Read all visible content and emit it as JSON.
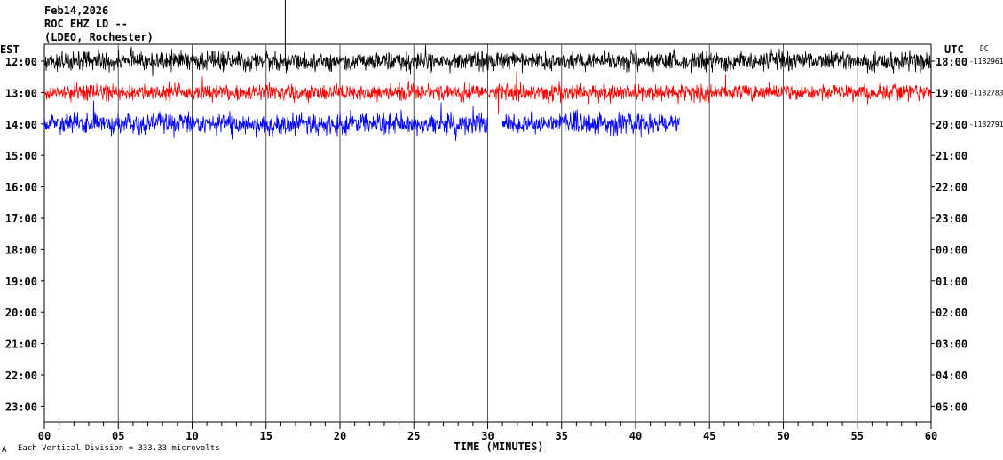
{
  "header": {
    "date": "Feb14,2026",
    "station": "ROC EHZ LD --",
    "network": "(LDEO, Rochester)"
  },
  "left_axis_label": "EST",
  "right_axis_label": "UTC",
  "dc_label": "DC",
  "footer_note": "Each Vertical Division =  333.33 microvolts",
  "corner_mark": "A",
  "colors": {
    "line1": "#000000",
    "line2": "#ff0000",
    "line3": "#0000ff",
    "grid": "#000000"
  },
  "chart_data": {
    "type": "line",
    "title": "",
    "xlabel": "TIME (MINUTES)",
    "ylabel": "",
    "xlim": [
      0,
      60
    ],
    "x_ticks": [
      "00",
      "05",
      "10",
      "15",
      "20",
      "25",
      "30",
      "35",
      "40",
      "45",
      "50",
      "55",
      "60"
    ],
    "rows_est": [
      "12:00",
      "13:00",
      "14:00",
      "15:00",
      "16:00",
      "17:00",
      "18:00",
      "19:00",
      "20:00",
      "21:00",
      "22:00",
      "23:00"
    ],
    "rows_utc": [
      "18:00",
      "19:00",
      "20:00",
      "21:00",
      "22:00",
      "23:00",
      "00:00",
      "01:00",
      "02:00",
      "03:00",
      "04:00",
      "05:00"
    ],
    "dc_offsets": [
      "-1182961",
      "-1182783",
      "-1182791"
    ],
    "series": [
      {
        "row": 0,
        "color": "#000000",
        "segments": [
          [
            0,
            60
          ]
        ],
        "amplitude_divisions": 0.45
      },
      {
        "row": 1,
        "color": "#ff0000",
        "segments": [
          [
            0,
            60
          ]
        ],
        "amplitude_divisions": 0.4
      },
      {
        "row": 2,
        "color": "#0000ff",
        "segments": [
          [
            0,
            30
          ],
          [
            31,
            43
          ]
        ],
        "amplitude_divisions": 0.5
      }
    ]
  }
}
